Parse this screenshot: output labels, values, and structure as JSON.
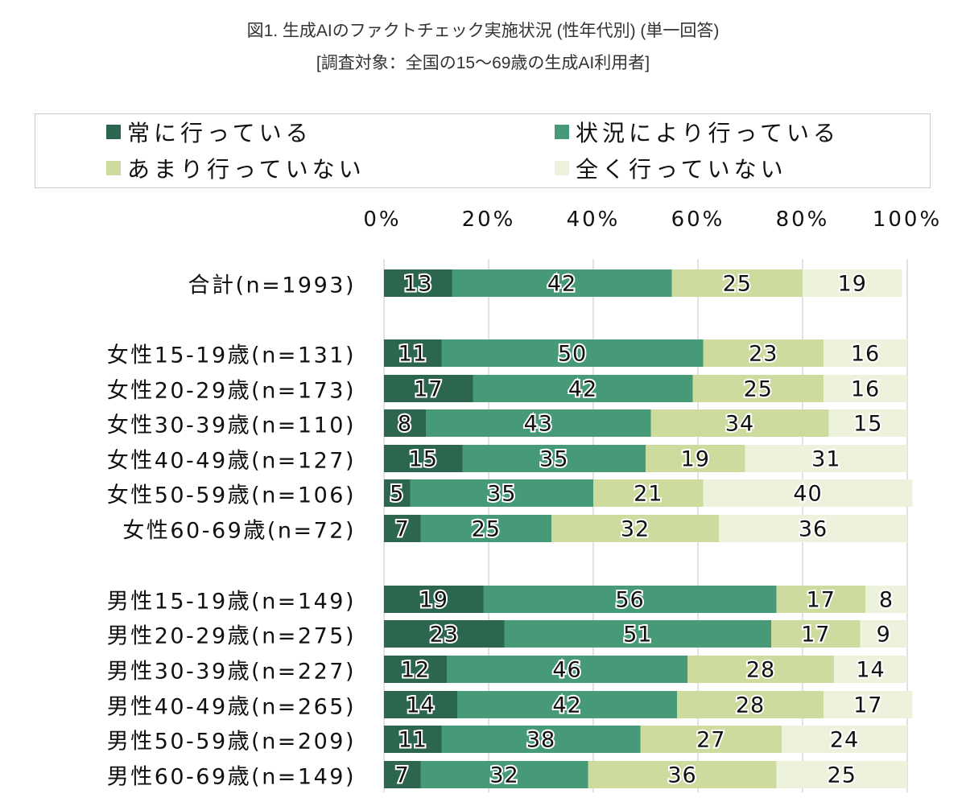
{
  "chart_data": {
    "type": "bar",
    "orientation": "horizontal",
    "stacked": "percent",
    "title": "図1. 生成AIのファクトチェック実施状況 (性年代別) (単一回答)",
    "subtitle": "[調査対象：全国の15〜69歳の生成AI利用者]",
    "xlabel": "",
    "ylabel": "",
    "xlim": [
      0,
      100
    ],
    "x_ticks": [
      "0%",
      "20%",
      "40%",
      "60%",
      "80%",
      "100%"
    ],
    "grid": true,
    "legend_position": "top",
    "categories": [
      "合計(n=1993)",
      "女性15-19歳(n=131)",
      "女性20-29歳(n=173)",
      "女性30-39歳(n=110)",
      "女性40-49歳(n=127)",
      "女性50-59歳(n=106)",
      "女性60-69歳(n=72)",
      "男性15-19歳(n=149)",
      "男性20-29歳(n=275)",
      "男性30-39歳(n=227)",
      "男性40-49歳(n=265)",
      "男性50-59歳(n=209)",
      "男性60-69歳(n=149)"
    ],
    "groups": [
      [
        0
      ],
      [
        1,
        2,
        3,
        4,
        5,
        6
      ],
      [
        7,
        8,
        9,
        10,
        11,
        12
      ]
    ],
    "series": [
      {
        "name": "常に行っている",
        "color": "#2d664f",
        "values": [
          13,
          11,
          17,
          8,
          15,
          5,
          7,
          19,
          23,
          12,
          14,
          11,
          7
        ]
      },
      {
        "name": "状況により行っている",
        "color": "#479a78",
        "values": [
          42,
          50,
          42,
          43,
          35,
          35,
          25,
          56,
          51,
          46,
          42,
          38,
          32
        ]
      },
      {
        "name": "あまり行っていない",
        "color": "#cddb9e",
        "values": [
          25,
          23,
          25,
          34,
          19,
          21,
          32,
          17,
          17,
          28,
          28,
          27,
          36
        ]
      },
      {
        "name": "全く行っていない",
        "color": "#edf2dc",
        "values": [
          19,
          16,
          16,
          15,
          31,
          40,
          36,
          8,
          9,
          14,
          17,
          24,
          25
        ]
      }
    ]
  }
}
